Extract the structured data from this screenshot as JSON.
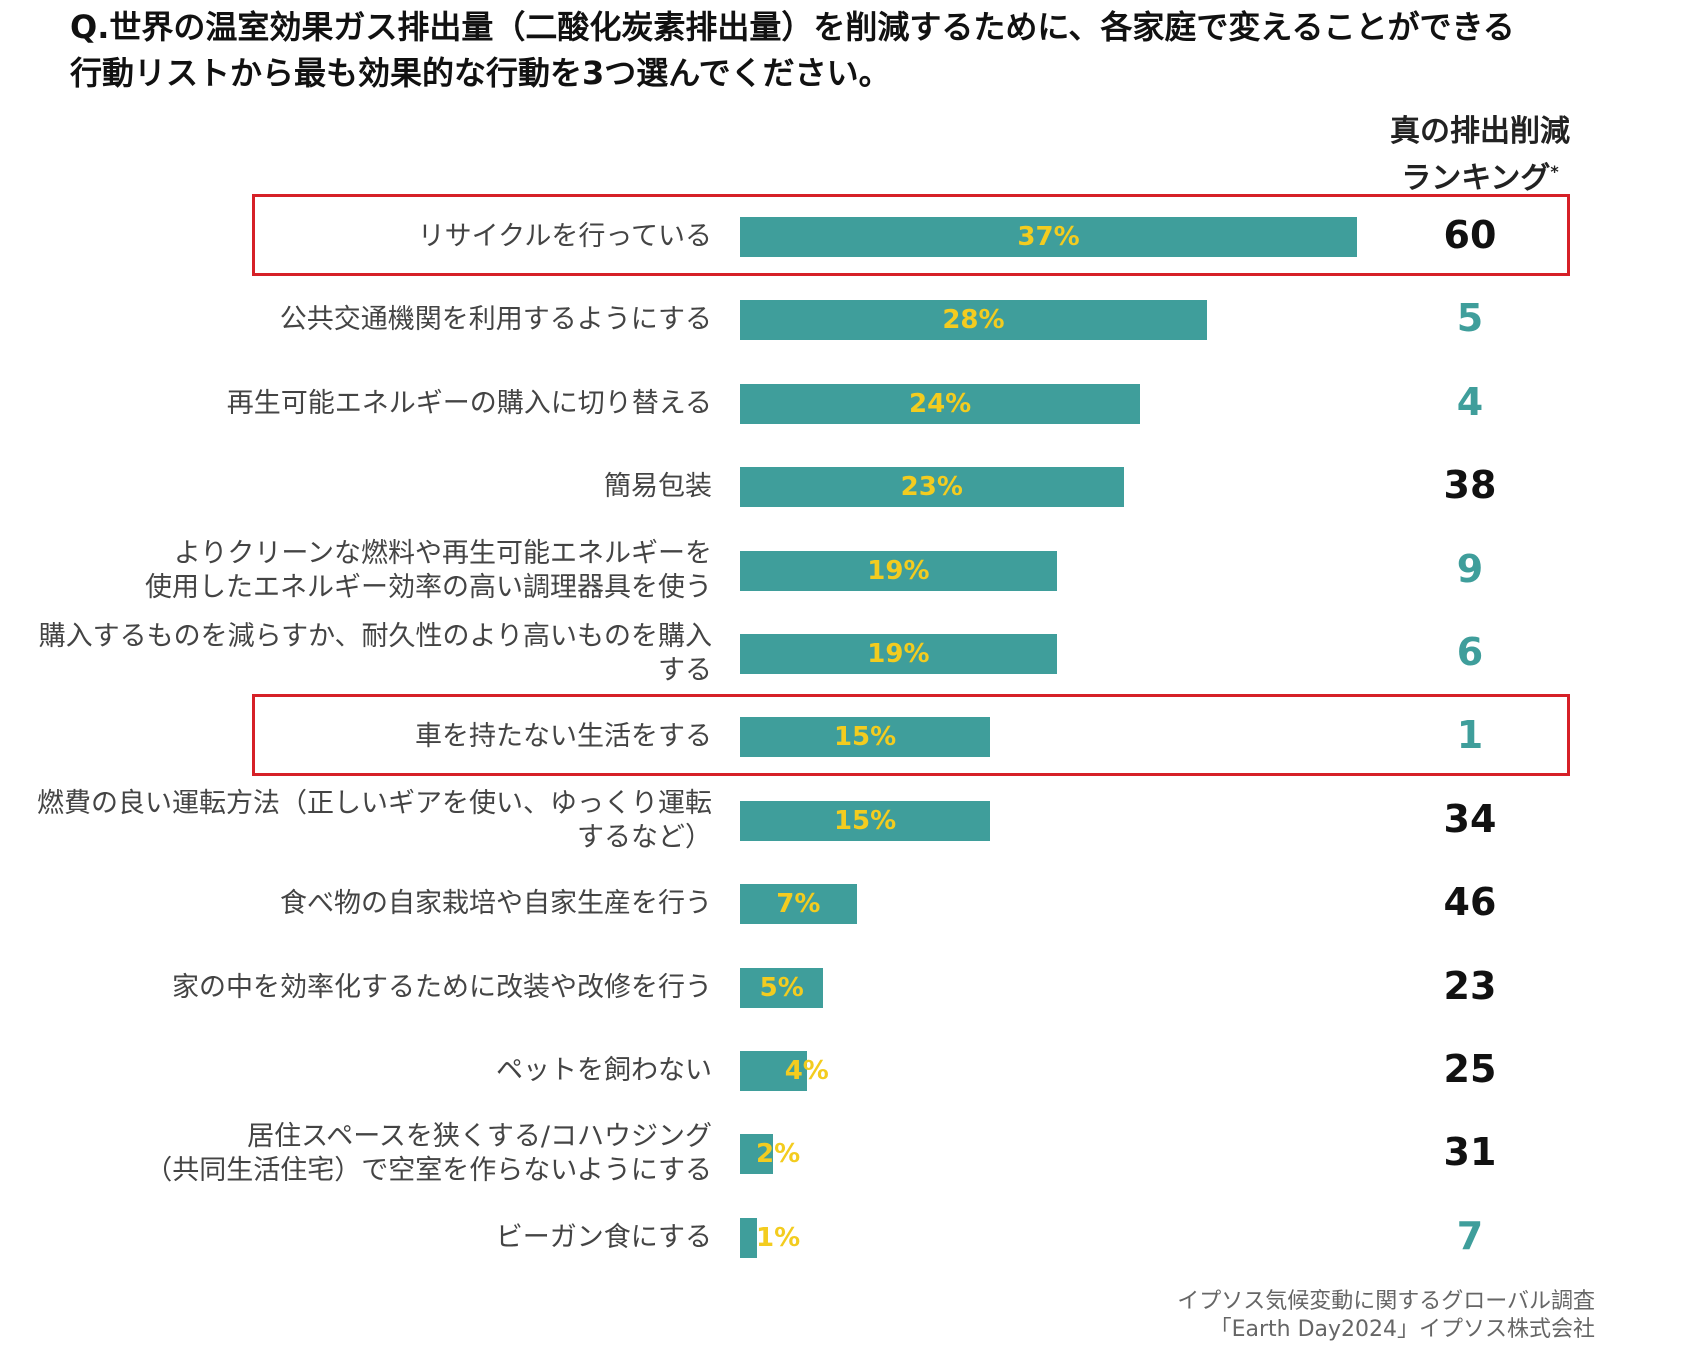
{
  "title": {
    "line1": "Q.世界の温室効果ガス排出量（二酸化炭素排出量）を削減するために、各家庭で変えることができる",
    "line2": "行動リストから最も効果的な行動を3つ選んでください。"
  },
  "rank_header": {
    "line1": "真の排出削減",
    "line2": "ランキング",
    "asterisk": "*"
  },
  "source": {
    "line1": "イプソス気候変動に関するグローバル調査",
    "line2": "「Earth Day2024」イプソス株式会社"
  },
  "colors": {
    "bar": "#3f9e9b",
    "value_label": "#f3cc1f",
    "rank_teal": "#3f9e9b",
    "rank_black": "#111111",
    "highlight": "#d62028"
  },
  "chart_data": {
    "type": "bar",
    "orientation": "horizontal",
    "title": "Q.世界の温室効果ガス排出量（二酸化炭素排出量）を削減するために、各家庭で変えることができる行動リストから最も効果的な行動を3つ選んでください。",
    "xlabel": "",
    "ylabel": "",
    "xlim": [
      0,
      37
    ],
    "unit": "%",
    "grid": false,
    "categories": [
      "リサイクルを行っている",
      "公共交通機関を利用するようにする",
      "再生可能エネルギーの購入に切り替える",
      "簡易包装",
      "よりクリーンな燃料や再生可能エネルギーを\n使用したエネルギー効率の高い調理器具を使う",
      "購入するものを減らすか、耐久性のより高いものを購入\nする",
      "車を持たない生活をする",
      "燃費の良い運転方法（正しいギアを使い、ゆっくり運転\nするなど）",
      "食べ物の自家栽培や自家生産を行う",
      "家の中を効率化するために改装や改修を行う",
      "ペットを飼わない",
      "居住スペースを狭くする/コハウジング\n（共同生活住宅）で空室を作らないようにする",
      "ビーガン食にする"
    ],
    "values": [
      37,
      28,
      24,
      23,
      19,
      19,
      15,
      15,
      7,
      5,
      4,
      2,
      1
    ],
    "value_labels": [
      "37%",
      "28%",
      "24%",
      "23%",
      "19%",
      "19%",
      "15%",
      "15%",
      "7%",
      "5%",
      "4%",
      "2%",
      "1%"
    ],
    "ranks": [
      "60",
      "5",
      "4",
      "38",
      "9",
      "6",
      "1",
      "34",
      "46",
      "23",
      "25",
      "31",
      "7"
    ],
    "rank_colors": [
      "black",
      "teal",
      "teal",
      "black",
      "teal",
      "teal",
      "teal",
      "black",
      "black",
      "black",
      "black",
      "black",
      "teal"
    ],
    "highlighted": [
      0,
      6
    ]
  }
}
